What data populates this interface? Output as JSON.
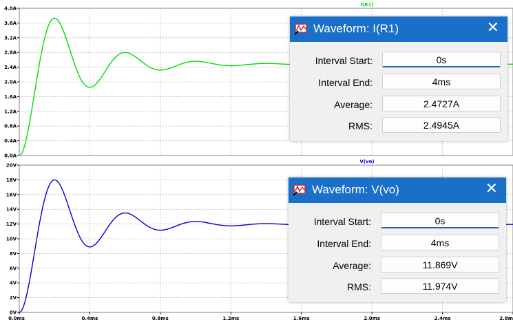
{
  "panes": [
    {
      "trace_label": "I(R1)",
      "trace_color": "#00dd00",
      "y_ticks": [
        "4.0A",
        "3.6A",
        "3.2A",
        "2.8A",
        "2.4A",
        "2.0A",
        "1.6A",
        "1.2A",
        "0.8A",
        "0.4A",
        "0.0A"
      ],
      "y_range": [
        0,
        4.0
      ],
      "final_value": 2.48,
      "peak_value": 3.73
    },
    {
      "trace_label": "V(vo)",
      "trace_color": "#0000cc",
      "y_ticks": [
        "20V",
        "18V",
        "16V",
        "14V",
        "12V",
        "10V",
        "8V",
        "6V",
        "4V",
        "2V",
        "0V"
      ],
      "y_range": [
        0,
        20
      ],
      "final_value": 11.95,
      "peak_value": 18.0
    }
  ],
  "x_ticks": [
    "0.0ms",
    "0.4ms",
    "0.8ms",
    "1.2ms",
    "1.6ms",
    "2.0ms",
    "2.4ms",
    "2.8m"
  ],
  "x_range_ms": [
    0,
    2.8
  ],
  "grid": true,
  "dialogs": [
    {
      "title": "Waveform: I(R1)",
      "close": "✕",
      "rows": [
        {
          "label": "Interval Start:",
          "value": "0s"
        },
        {
          "label": "Interval End:",
          "value": "4ms"
        },
        {
          "label": "Average:",
          "value": "2.4727A"
        },
        {
          "label": "RMS:",
          "value": "2.4945A"
        }
      ]
    },
    {
      "title": "Waveform: V(vo)",
      "close": "✕",
      "rows": [
        {
          "label": "Interval Start:",
          "value": "0s"
        },
        {
          "label": "Interval End:",
          "value": "4ms"
        },
        {
          "label": "Average:",
          "value": "11.869V"
        },
        {
          "label": "RMS:",
          "value": "11.974V"
        }
      ]
    }
  ],
  "icons": {
    "dialog_icon": "waveform-probe-icon",
    "close_icon": "close-icon"
  }
}
